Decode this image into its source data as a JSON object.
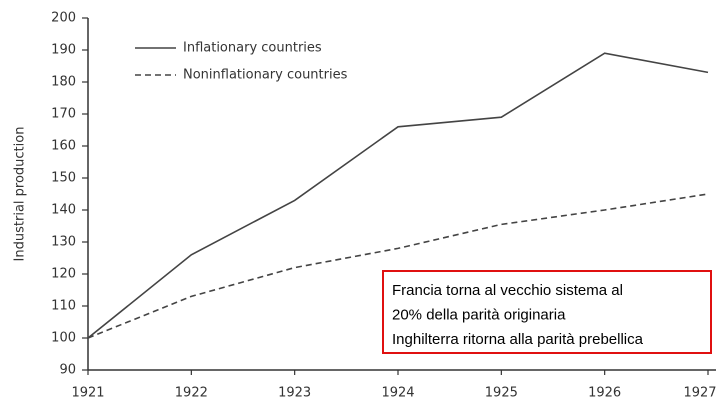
{
  "chart_data": {
    "type": "line",
    "y_label": "Industrial production",
    "categories": [
      "1921",
      "1922",
      "1923",
      "1924",
      "1925",
      "1926",
      "1927"
    ],
    "series": [
      {
        "name": "Inflationary countries",
        "color": "#444444",
        "style": "solid",
        "values": [
          100,
          126,
          143,
          166,
          169,
          189,
          183
        ]
      },
      {
        "name": "Noninflationary countries",
        "color": "#444444",
        "style": "dashed",
        "values": [
          100,
          113,
          122,
          128,
          135.5,
          140,
          145
        ]
      }
    ],
    "ylim": [
      90,
      200
    ],
    "yticks": [
      90,
      100,
      110,
      120,
      130,
      140,
      150,
      160,
      170,
      180,
      190,
      200
    ],
    "annotation": {
      "lines": [
        "Francia torna al vecchio sistema al",
        "20% della parità originaria",
        "Inghilterra ritorna alla parità prebellica"
      ],
      "border_color": "#e01010"
    }
  }
}
